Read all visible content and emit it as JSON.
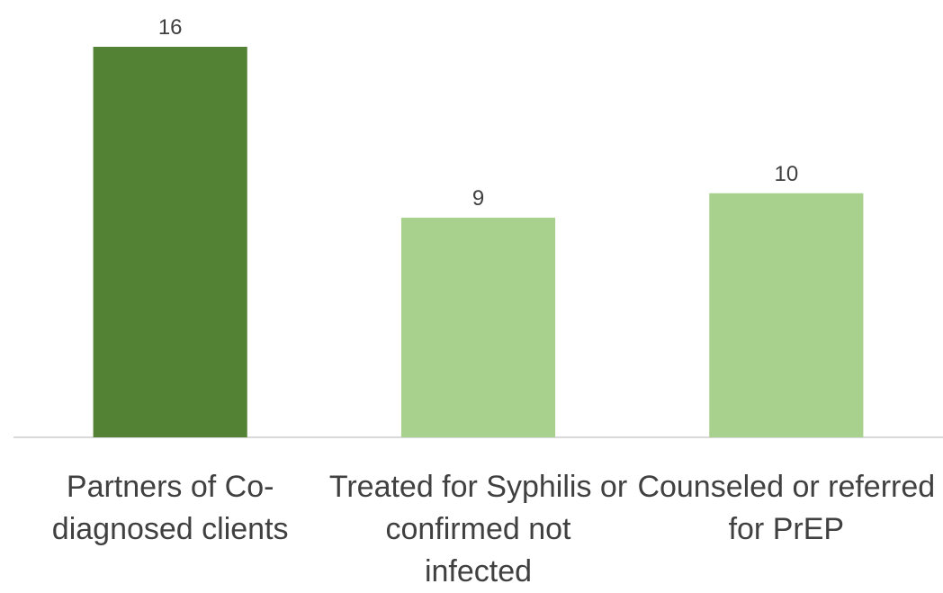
{
  "chart_data": {
    "type": "bar",
    "categories": [
      "Partners of Co-diagnosed clients",
      "Treated for Syphilis or confirmed not infected",
      "Counseled or referred for PrEP"
    ],
    "values": [
      16,
      9,
      10
    ],
    "colors": [
      "#548235",
      "#a9d18e",
      "#a9d18e"
    ],
    "ylim": [
      0,
      16
    ]
  }
}
